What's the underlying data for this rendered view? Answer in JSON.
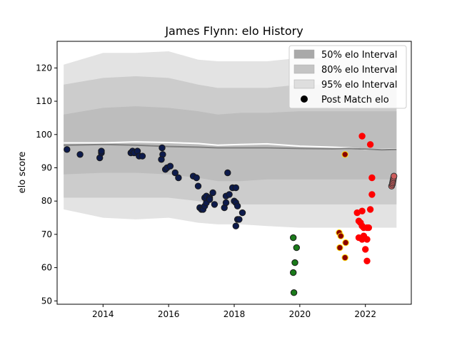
{
  "chart_data": {
    "type": "scatter",
    "title": "James Flynn: elo History",
    "xlabel": "",
    "ylabel": "elo score",
    "xlim": [
      2012.6,
      2023.4
    ],
    "ylim": [
      49,
      128
    ],
    "xticks": [
      2014,
      2016,
      2018,
      2020,
      2022
    ],
    "xtick_labels": [
      "2014",
      "2016",
      "2018",
      "2020",
      "2022"
    ],
    "yticks": [
      50,
      60,
      70,
      80,
      90,
      100,
      110,
      120
    ],
    "ytick_labels": [
      "50",
      "60",
      "70",
      "80",
      "90",
      "100",
      "110",
      "120"
    ],
    "grid": false,
    "legend_position": "top-right",
    "legend": [
      {
        "label": "50% elo Interval",
        "kind": "patch",
        "color": "#a9a9a9"
      },
      {
        "label": "80% elo Interval",
        "kind": "patch",
        "color": "#c4c4c4"
      },
      {
        "label": "95% elo Interval",
        "kind": "patch",
        "color": "#dedede"
      },
      {
        "label": "Post Match elo",
        "kind": "marker",
        "color": "#000000"
      }
    ],
    "colors": {
      "band95": "#e3e3e3",
      "band80": "#cccccc",
      "band50": "#bdbdbd",
      "median": "#808080",
      "mean": "#ffffff"
    },
    "bands": {
      "x": [
        2012.8,
        2014.0,
        2015.0,
        2016.0,
        2016.9,
        2017.5,
        2018.2,
        2019.0,
        2020.0,
        2021.0,
        2021.5,
        2022.0,
        2022.5,
        2022.95
      ],
      "p95_hi": [
        121,
        124.5,
        124.5,
        125,
        122.5,
        122,
        122,
        122,
        123,
        123,
        123,
        123,
        123,
        123
      ],
      "p80_hi": [
        115,
        117,
        117.5,
        117,
        115,
        114,
        114,
        114,
        115,
        115,
        115,
        115,
        115,
        115
      ],
      "p50_hi": [
        106,
        108,
        108.5,
        108,
        107,
        106,
        106.5,
        106.5,
        107,
        107,
        107,
        107,
        107,
        107
      ],
      "mean": [
        97.5,
        97.5,
        97.8,
        97.6,
        97.3,
        96.8,
        97.0,
        97.2,
        96.5,
        96.2,
        96.0,
        95.5,
        95.5,
        95.6
      ],
      "median": [
        96.8,
        97.0,
        96.8,
        96.4,
        96.2,
        96.0,
        96.0,
        96.0,
        95.8,
        95.7,
        95.8,
        95.6,
        95.4,
        95.5
      ],
      "p50_lo": [
        88,
        88.5,
        88.5,
        88,
        87,
        86,
        86,
        86.5,
        86.5,
        86.5,
        86.5,
        86.5,
        86.5,
        86.5
      ],
      "p80_lo": [
        81,
        81,
        81,
        81,
        80,
        79,
        79,
        79,
        79,
        79,
        79,
        79,
        79,
        79
      ],
      "p95_lo": [
        77.5,
        75,
        74.5,
        75,
        73.5,
        73,
        73,
        72.5,
        72,
        72,
        72,
        72,
        72,
        72
      ]
    },
    "series": [
      {
        "fill": "#0d1b4c",
        "edge": "#1a1a1a",
        "points": [
          [
            2012.9,
            95.5
          ],
          [
            2013.3,
            94
          ],
          [
            2013.9,
            93
          ],
          [
            2013.95,
            94.5
          ],
          [
            2013.95,
            95
          ],
          [
            2014.85,
            94.5
          ],
          [
            2014.9,
            95
          ],
          [
            2014.95,
            94.5
          ],
          [
            2015.05,
            95
          ],
          [
            2015.1,
            93.5
          ],
          [
            2015.2,
            93.5
          ],
          [
            2015.8,
            96
          ],
          [
            2015.82,
            94
          ],
          [
            2015.78,
            92.5
          ],
          [
            2015.9,
            89.5
          ],
          [
            2015.95,
            90
          ],
          [
            2016.05,
            90.5
          ],
          [
            2016.2,
            88.5
          ],
          [
            2016.3,
            87
          ],
          [
            2016.75,
            87.5
          ],
          [
            2016.85,
            87
          ],
          [
            2016.9,
            84.5
          ],
          [
            2016.95,
            78
          ],
          [
            2017.0,
            77.5
          ],
          [
            2017.05,
            77.5
          ],
          [
            2017.1,
            78.5
          ],
          [
            2017.15,
            79.5
          ],
          [
            2017.1,
            81
          ],
          [
            2017.15,
            81.5
          ],
          [
            2017.25,
            81
          ],
          [
            2017.25,
            80.5
          ],
          [
            2017.35,
            82.5
          ],
          [
            2017.4,
            79
          ],
          [
            2017.7,
            78
          ],
          [
            2017.75,
            79.5
          ],
          [
            2017.75,
            81.5
          ],
          [
            2017.85,
            82
          ],
          [
            2017.8,
            88.5
          ],
          [
            2017.95,
            84
          ],
          [
            2018.05,
            84
          ],
          [
            2018.0,
            80
          ],
          [
            2018.05,
            79.5
          ],
          [
            2018.1,
            78.5
          ],
          [
            2018.1,
            74.5
          ],
          [
            2018.15,
            74.5
          ],
          [
            2018.05,
            72.5
          ],
          [
            2018.25,
            76.5
          ]
        ]
      },
      {
        "fill": "#1a7a1a",
        "edge": "#1a1a1a",
        "points": [
          [
            2019.8,
            69
          ],
          [
            2019.9,
            66
          ],
          [
            2019.85,
            61.5
          ],
          [
            2019.8,
            58.5
          ],
          [
            2019.82,
            52.5
          ]
        ]
      },
      {
        "fill": "#8b0000",
        "edge": "#ffd700",
        "points": [
          [
            2021.2,
            70.5
          ],
          [
            2021.25,
            69.5
          ],
          [
            2021.22,
            66
          ],
          [
            2021.4,
            67.5
          ],
          [
            2021.38,
            63
          ],
          [
            2021.38,
            94
          ]
        ]
      },
      {
        "fill": "#ff0000",
        "edge": "#ff0000",
        "points": [
          [
            2021.9,
            99.5
          ],
          [
            2022.15,
            97
          ],
          [
            2022.2,
            87
          ],
          [
            2022.2,
            82
          ],
          [
            2022.15,
            77.5
          ],
          [
            2021.75,
            76.5
          ],
          [
            2021.9,
            77
          ],
          [
            2021.8,
            74
          ],
          [
            2021.85,
            73.5
          ],
          [
            2021.9,
            72.5
          ],
          [
            2021.95,
            72
          ],
          [
            2022.05,
            72
          ],
          [
            2022.1,
            72
          ],
          [
            2021.8,
            69
          ],
          [
            2021.9,
            68.5
          ],
          [
            2021.95,
            69.5
          ],
          [
            2022.05,
            68.5
          ],
          [
            2022.0,
            65.5
          ],
          [
            2022.05,
            62
          ]
        ]
      },
      {
        "fill": "#cd5c5c",
        "edge": "#333333",
        "points": [
          [
            2022.8,
            84.5
          ],
          [
            2022.82,
            85
          ],
          [
            2022.83,
            85.5
          ],
          [
            2022.84,
            86
          ],
          [
            2022.85,
            86.5
          ],
          [
            2022.86,
            87
          ],
          [
            2022.87,
            87.5
          ]
        ]
      }
    ]
  }
}
